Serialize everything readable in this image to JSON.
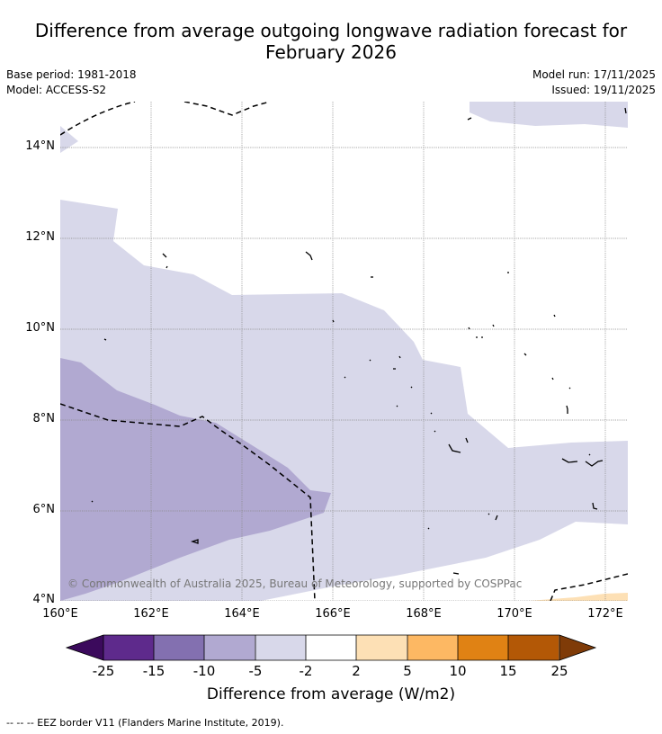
{
  "title": {
    "line1": "Difference from average outgoing longwave radiation forecast for",
    "line2": "February 2026"
  },
  "meta": {
    "base_period": "Base period: 1981-2018",
    "model": "Model: ACCESS-S2",
    "model_run": "Model run: 17/11/2025",
    "issued": "Issued: 19/11/2025"
  },
  "axes": {
    "lat_labels": [
      "14°N",
      "12°N",
      "10°N",
      "8°N",
      "6°N",
      "4°N"
    ],
    "lon_labels": [
      "160°E",
      "162°E",
      "164°E",
      "166°E",
      "168°E",
      "170°E",
      "172°E"
    ]
  },
  "legend": {
    "ticks": [
      "-25",
      "-15",
      "-10",
      "-5",
      "-2",
      "2",
      "5",
      "10",
      "15",
      "25"
    ],
    "colors": [
      "#3b0a5c",
      "#5e2a8c",
      "#8370b0",
      "#b1a9d1",
      "#d8d8ea",
      "#ffffff",
      "#fde0b5",
      "#fdb863",
      "#e08214",
      "#b35806",
      "#7f3b08"
    ],
    "label": "Difference from average (W/m2)"
  },
  "map": {
    "colors": {
      "light_purple": "#d8d8ea",
      "mid_purple": "#b1a9d1",
      "light_orange": "#fde0b5",
      "grid": "#888888"
    }
  },
  "copyright": "© Commonwealth of Australia 2025, Bureau of Meteorology, supported by COSPPac",
  "footnote": "--  --  -- EEZ border V11 (Flanders Marine Institute, 2019)."
}
